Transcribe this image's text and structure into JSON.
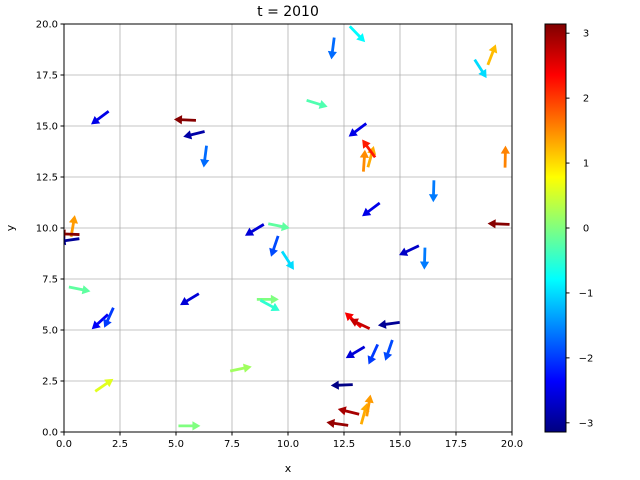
{
  "chart_data": {
    "type": "quiver",
    "title": "t = 2010",
    "xlabel": "x",
    "ylabel": "y",
    "xlim": [
      0,
      20
    ],
    "ylim": [
      0,
      20
    ],
    "xticks": [
      "0.0",
      "2.5",
      "5.0",
      "7.5",
      "10.0",
      "12.5",
      "15.0",
      "17.5",
      "20.0"
    ],
    "yticks": [
      "0.0",
      "2.5",
      "5.0",
      "7.5",
      "10.0",
      "12.5",
      "15.0",
      "17.5",
      "20.0"
    ],
    "grid": true,
    "colormap": "jet",
    "colorbar": {
      "range": [
        -3.14159,
        3.14159
      ],
      "ticks": [
        "3",
        "2",
        "1",
        "0",
        "−1",
        "−2",
        "−3"
      ],
      "tick_values": [
        3,
        2,
        1,
        0,
        -1,
        -2,
        -3
      ]
    },
    "vectors": [
      {
        "x": 1.6,
        "y": 15.4,
        "angle": -2.5
      },
      {
        "x": 5.4,
        "y": 15.3,
        "angle": 3.1
      },
      {
        "x": 5.8,
        "y": 14.6,
        "angle": -2.9
      },
      {
        "x": 6.3,
        "y": 13.5,
        "angle": -1.7
      },
      {
        "x": 12.0,
        "y": 18.8,
        "angle": -1.7
      },
      {
        "x": 13.1,
        "y": 19.5,
        "angle": -0.8
      },
      {
        "x": 11.3,
        "y": 16.1,
        "angle": -0.3
      },
      {
        "x": 13.1,
        "y": 14.8,
        "angle": -2.5
      },
      {
        "x": 13.4,
        "y": 13.3,
        "angle": 1.5
      },
      {
        "x": 13.7,
        "y": 13.5,
        "angle": 1.3
      },
      {
        "x": 13.6,
        "y": 13.9,
        "angle": 2.2
      },
      {
        "x": 18.6,
        "y": 17.8,
        "angle": -1.0
      },
      {
        "x": 19.1,
        "y": 18.5,
        "angle": 1.2
      },
      {
        "x": 19.7,
        "y": 13.5,
        "angle": 1.55
      },
      {
        "x": 0.4,
        "y": 10.1,
        "angle": 1.4
      },
      {
        "x": 0.2,
        "y": 9.7,
        "angle": 3.1
      },
      {
        "x": 0.2,
        "y": 9.4,
        "angle": -3.0
      },
      {
        "x": 8.5,
        "y": 9.9,
        "angle": -2.6
      },
      {
        "x": 9.6,
        "y": 10.1,
        "angle": -0.2
      },
      {
        "x": 9.4,
        "y": 9.1,
        "angle": -1.9
      },
      {
        "x": 10.0,
        "y": 8.4,
        "angle": -1.0
      },
      {
        "x": 13.7,
        "y": 10.9,
        "angle": -2.5
      },
      {
        "x": 15.4,
        "y": 8.9,
        "angle": -2.7
      },
      {
        "x": 16.1,
        "y": 8.5,
        "angle": -1.6
      },
      {
        "x": 16.5,
        "y": 11.8,
        "angle": -1.6
      },
      {
        "x": 19.4,
        "y": 10.2,
        "angle": 3.1
      },
      {
        "x": 0.7,
        "y": 7.0,
        "angle": -0.2
      },
      {
        "x": 1.6,
        "y": 5.4,
        "angle": -2.4
      },
      {
        "x": 2.0,
        "y": 5.6,
        "angle": -2.0
      },
      {
        "x": 5.6,
        "y": 6.5,
        "angle": -2.6
      },
      {
        "x": 9.1,
        "y": 6.5,
        "angle": 0.0
      },
      {
        "x": 9.2,
        "y": 6.2,
        "angle": -0.5
      },
      {
        "x": 12.9,
        "y": 5.5,
        "angle": 2.4
      },
      {
        "x": 13.2,
        "y": 5.3,
        "angle": 2.7
      },
      {
        "x": 14.5,
        "y": 5.3,
        "angle": -3.0
      },
      {
        "x": 13.0,
        "y": 3.9,
        "angle": -2.6
      },
      {
        "x": 13.8,
        "y": 3.8,
        "angle": -2.0
      },
      {
        "x": 14.5,
        "y": 4.0,
        "angle": -1.9
      },
      {
        "x": 1.8,
        "y": 2.3,
        "angle": 0.6
      },
      {
        "x": 7.9,
        "y": 3.1,
        "angle": 0.2
      },
      {
        "x": 12.4,
        "y": 2.3,
        "angle": -3.1
      },
      {
        "x": 12.7,
        "y": 1.0,
        "angle": 2.9
      },
      {
        "x": 13.4,
        "y": 0.9,
        "angle": 1.3
      },
      {
        "x": 13.6,
        "y": 1.3,
        "angle": 1.4
      },
      {
        "x": 12.2,
        "y": 0.4,
        "angle": 3.0
      },
      {
        "x": 5.6,
        "y": 0.3,
        "angle": 0.0
      }
    ]
  }
}
